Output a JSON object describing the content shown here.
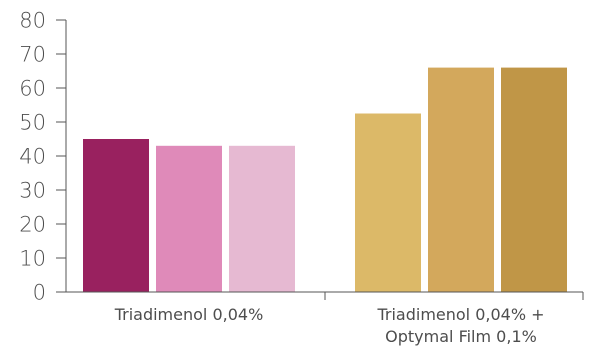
{
  "chart_data": {
    "type": "bar",
    "title": "",
    "xlabel": "",
    "ylabel": "",
    "ylim": [
      0,
      80
    ],
    "yticks": [
      0,
      10,
      20,
      30,
      40,
      50,
      60,
      70,
      80
    ],
    "grid": false,
    "legend": "none",
    "groups": [
      {
        "label_lines": [
          "Triadimenol 0,04%"
        ],
        "bars": [
          {
            "value": 45,
            "color": "#99215f"
          },
          {
            "value": 43,
            "color": "#df8ab9"
          },
          {
            "value": 43,
            "color": "#e6b9d2"
          }
        ]
      },
      {
        "label_lines": [
          "Triadimenol 0,04% +",
          "Optymal Film 0,1%"
        ],
        "bars": [
          {
            "value": 52.5,
            "color": "#dcb968"
          },
          {
            "value": 66,
            "color": "#d3a85c"
          },
          {
            "value": 66,
            "color": "#c09647"
          }
        ]
      }
    ]
  }
}
